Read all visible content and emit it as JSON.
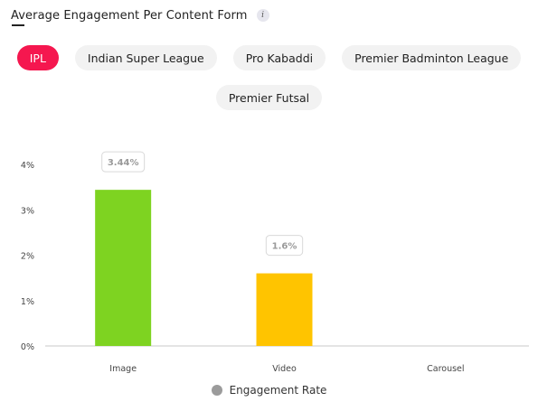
{
  "header": {
    "title": "Average Engagement Per Content Form",
    "info_icon": "i"
  },
  "tabs": [
    {
      "label": "IPL",
      "active": true
    },
    {
      "label": "Indian Super League",
      "active": false
    },
    {
      "label": "Pro Kabaddi",
      "active": false
    },
    {
      "label": "Premier Badminton League",
      "active": false
    },
    {
      "label": "Premier Futsal",
      "active": false
    }
  ],
  "colors": {
    "active_tab": "#f5174f",
    "image_bar": "#7ed321",
    "video_bar": "#ffc400",
    "legend": "#9b9b9b"
  },
  "chart_data": {
    "type": "bar",
    "categories": [
      "Image",
      "Video",
      "Carousel"
    ],
    "values": [
      3.44,
      1.6,
      0
    ],
    "data_labels": [
      "3.44%",
      "1.6%",
      ""
    ],
    "bar_colors": [
      "#7ed321",
      "#ffc400",
      "#7ed321"
    ],
    "ylim": [
      0,
      4
    ],
    "yticks": [
      0,
      1,
      2,
      3,
      4
    ],
    "ytick_labels": [
      "0%",
      "1%",
      "2%",
      "3%",
      "4%"
    ],
    "legend": [
      "Engagement Rate"
    ],
    "legend_placement": "bottom-center",
    "grid": false
  }
}
